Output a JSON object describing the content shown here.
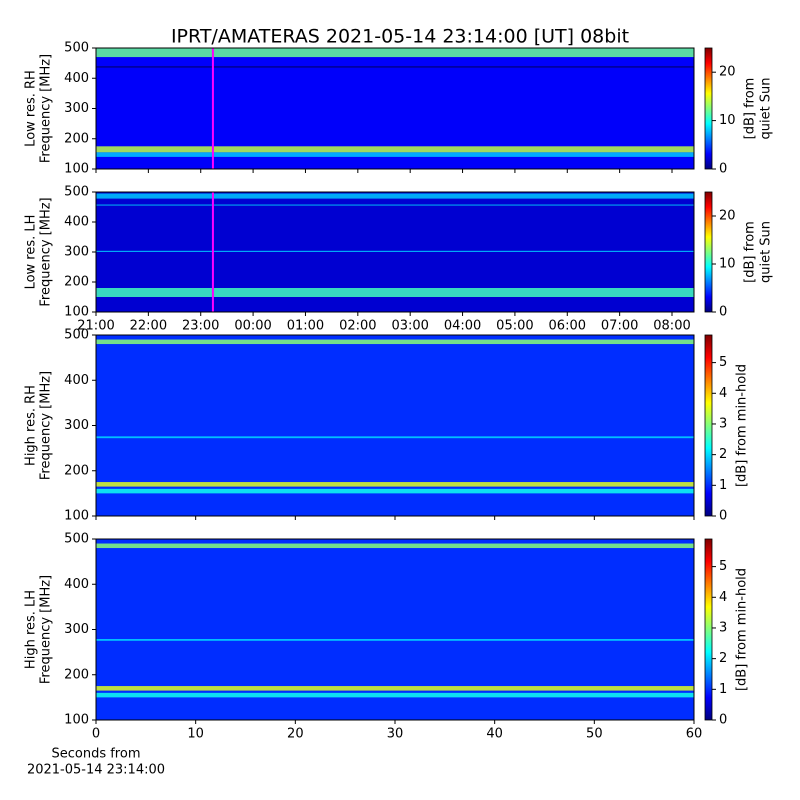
{
  "chart_data": [
    {
      "type": "heatmap",
      "title": "IPRT/AMATERAS 2021-05-14 23:14:00 [UT]   08bit",
      "ylabel": [
        "Low res. RH",
        "Frequency [MHz]"
      ],
      "ylim": [
        100,
        500
      ],
      "yticks": [
        100,
        200,
        300,
        400,
        500
      ],
      "xlim": [
        21,
        32.42
      ],
      "cursor_x": 23.233,
      "cursor_color": "#ff00ff",
      "colormap": [
        "#00007f",
        "#0000ff",
        "#00ffff",
        "#ffff00",
        "#ff0000",
        "#7f0000"
      ],
      "background_value": 3,
      "bands": [
        {
          "y": [
            470,
            500
          ],
          "value": 12
        },
        {
          "y": [
            155,
            175
          ],
          "value": 14
        },
        {
          "y": [
            140,
            155
          ],
          "value": 8
        },
        {
          "y": [
            435,
            440
          ],
          "value": 0
        }
      ],
      "colorbar": {
        "label": [
          "[dB] from",
          "quiet Sun"
        ],
        "lim": [
          0,
          25
        ],
        "ticks": [
          0,
          10,
          20
        ]
      }
    },
    {
      "type": "heatmap",
      "ylabel": [
        "Low res. LH",
        "Frequency [MHz]"
      ],
      "ylim": [
        100,
        500
      ],
      "yticks": [
        100,
        200,
        300,
        400,
        500
      ],
      "xlim": [
        21,
        32.42
      ],
      "cursor_x": 23.233,
      "cursor_color": "#ff00ff",
      "xticks": [
        {
          "value": 21,
          "label": "21:00"
        },
        {
          "value": 22,
          "label": "22:00"
        },
        {
          "value": 23,
          "label": "23:00"
        },
        {
          "value": 24,
          "label": "00:00"
        },
        {
          "value": 25,
          "label": "01:00"
        },
        {
          "value": 26,
          "label": "02:00"
        },
        {
          "value": 27,
          "label": "03:00"
        },
        {
          "value": 28,
          "label": "04:00"
        },
        {
          "value": 29,
          "label": "05:00"
        },
        {
          "value": 30,
          "label": "06:00"
        },
        {
          "value": 31,
          "label": "07:00"
        },
        {
          "value": 32,
          "label": "08:00"
        }
      ],
      "colormap": [
        "#00007f",
        "#0000ff",
        "#00ffff",
        "#ffff00",
        "#ff0000",
        "#7f0000"
      ],
      "background_value": 2,
      "bands": [
        {
          "y": [
            478,
            495
          ],
          "value": 8
        },
        {
          "y": [
            150,
            180
          ],
          "value": 11
        },
        {
          "y": [
            300,
            304
          ],
          "value": 8
        },
        {
          "y": [
            455,
            458
          ],
          "value": 9
        }
      ],
      "colorbar": {
        "label": [
          "[dB] from",
          "quiet Sun"
        ],
        "lim": [
          0,
          25
        ],
        "ticks": [
          0,
          10,
          20
        ]
      }
    },
    {
      "type": "heatmap",
      "ylabel": [
        "High res. RH",
        "Frequency [MHz]"
      ],
      "ylim": [
        100,
        500
      ],
      "yticks": [
        100,
        200,
        300,
        400,
        500
      ],
      "xlim": [
        0,
        60
      ],
      "colormap": [
        "#00007f",
        "#0000ff",
        "#00ffff",
        "#ffff00",
        "#ff0000",
        "#7f0000"
      ],
      "background_value": 1,
      "bands": [
        {
          "y": [
            480,
            490
          ],
          "value": 3
        },
        {
          "y": [
            165,
            175
          ],
          "value": 3.5
        },
        {
          "y": [
            150,
            160
          ],
          "value": 2.3
        },
        {
          "y": [
            272,
            276
          ],
          "value": 2
        }
      ],
      "colorbar": {
        "label": [
          "[dB] from min-hold"
        ],
        "lim": [
          0,
          5.9
        ],
        "ticks": [
          0,
          1,
          2,
          3,
          4,
          5
        ]
      }
    },
    {
      "type": "heatmap",
      "ylabel": [
        "High res. LH",
        "Frequency [MHz]"
      ],
      "ylim": [
        100,
        500
      ],
      "yticks": [
        100,
        200,
        300,
        400,
        500
      ],
      "xlim": [
        0,
        60
      ],
      "xticks": [
        0,
        10,
        20,
        30,
        40,
        50,
        60
      ],
      "xlabel": [
        "Seconds from",
        "2021-05-14 23:14:00"
      ],
      "colormap": [
        "#00007f",
        "#0000ff",
        "#00ffff",
        "#ffff00",
        "#ff0000",
        "#7f0000"
      ],
      "background_value": 1,
      "bands": [
        {
          "y": [
            480,
            490
          ],
          "value": 3
        },
        {
          "y": [
            165,
            175
          ],
          "value": 3.5
        },
        {
          "y": [
            150,
            160
          ],
          "value": 2.3
        },
        {
          "y": [
            275,
            279
          ],
          "value": 2
        }
      ],
      "colorbar": {
        "label": [
          "[dB] from min-hold"
        ],
        "lim": [
          0,
          5.9
        ],
        "ticks": [
          0,
          1,
          2,
          3,
          4,
          5
        ]
      }
    }
  ]
}
